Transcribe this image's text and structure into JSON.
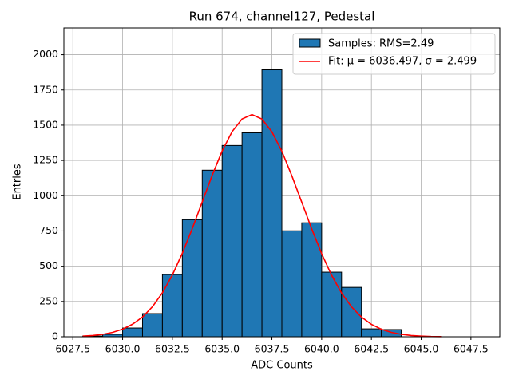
{
  "chart_data": {
    "type": "histogram",
    "title": "Run 674, channel127, Pedestal",
    "x_label": "ADC Counts",
    "y_label": "Entries",
    "name": "Samples: RMS=2.49",
    "color": "#1f77b4",
    "bins": [
      6028,
      6029,
      6030,
      6031,
      6032,
      6033,
      6034,
      6035,
      6036,
      6037,
      6038,
      6039,
      6040,
      6041,
      6042,
      6043,
      6044,
      6045,
      6046,
      6047,
      6048
    ],
    "counts": [
      5,
      17,
      62,
      164,
      441,
      830,
      1181,
      1356,
      1446,
      1893,
      751,
      808,
      458,
      350,
      56,
      51,
      0,
      0,
      0,
      0
    ],
    "fit": {
      "name": "Fit: μ = 6036.497, σ = 2.499",
      "color": "#ff0000",
      "x": [
        6028,
        6028.5,
        6029,
        6029.5,
        6030,
        6030.5,
        6031,
        6031.5,
        6032,
        6032.5,
        6033,
        6033.5,
        6034,
        6034.5,
        6035,
        6035.5,
        6036,
        6036.5,
        6037,
        6037.5,
        6038,
        6038.5,
        6039,
        6039.5,
        6040,
        6040.5,
        6041,
        6041.5,
        6042,
        6042.5,
        6043,
        6043.5,
        6044,
        6044.5,
        6045,
        6045.5,
        6046
      ],
      "values": [
        5,
        9,
        17,
        31,
        54,
        89,
        140,
        213,
        312,
        438,
        592,
        767,
        956,
        1145,
        1317,
        1454,
        1544,
        1575,
        1543,
        1453,
        1315,
        1142,
        954,
        765,
        589,
        436,
        310,
        212,
        139,
        88,
        53,
        31,
        17,
        9,
        5,
        2,
        1
      ]
    },
    "xlim": [
      6027.05,
      6048.95
    ],
    "ylim": [
      0,
      2190
    ],
    "xticks": [
      6027.5,
      {
        "value": 6030,
        "label": "6030.0"
      },
      6032.5,
      {
        "value": 6035,
        "label": "6035.0"
      },
      6037.5,
      {
        "value": 6040,
        "label": "6040.0"
      },
      6042.5,
      {
        "value": 6045,
        "label": "6045.0"
      },
      6047.5
    ],
    "yticks": [
      0,
      250,
      500,
      750,
      1000,
      1250,
      1500,
      1750,
      2000
    ],
    "grid": true,
    "legend": "upper right"
  }
}
